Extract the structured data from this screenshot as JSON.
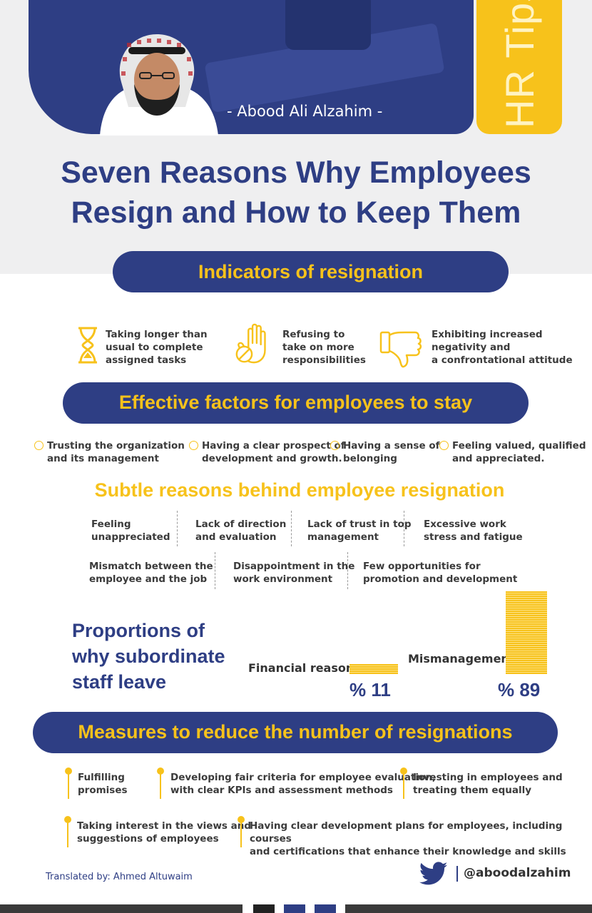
{
  "header": {
    "author": "- Abood Ali Alzahim -",
    "side_tab": "HR Tips"
  },
  "title": {
    "line1": "Seven Reasons Why Employees",
    "line2": "Resign and How to Keep Them"
  },
  "indicators": {
    "heading": "Indicators of resignation",
    "items": [
      {
        "icon": "hourglass-icon",
        "lines": [
          "Taking longer than",
          "usual to complete",
          "assigned tasks"
        ]
      },
      {
        "icon": "stop-hand-icon",
        "lines": [
          "Refusing to",
          "take on more",
          "responsibilities"
        ]
      },
      {
        "icon": "thumbs-down-icon",
        "lines": [
          "Exhibiting increased",
          "negativity and",
          "a confrontational attitude"
        ]
      }
    ]
  },
  "factors": {
    "heading": "Effective factors for employees to stay",
    "items": [
      {
        "lines": [
          "Trusting the organization",
          "and its management"
        ]
      },
      {
        "lines": [
          "Having a clear prospect of",
          "development and growth."
        ]
      },
      {
        "lines": [
          "Having a sense of",
          "belonging"
        ]
      },
      {
        "lines": [
          "Feeling valued, qualified",
          "and appreciated."
        ]
      }
    ]
  },
  "subtle": {
    "heading": "Subtle reasons behind employee resignation",
    "row1": [
      {
        "lines": [
          "Feeling",
          "unappreciated"
        ]
      },
      {
        "lines": [
          "Lack of direction",
          "and evaluation"
        ]
      },
      {
        "lines": [
          "Lack of trust in top",
          "management"
        ]
      },
      {
        "lines": [
          "Excessive work",
          "stress and fatigue"
        ]
      }
    ],
    "row2": [
      {
        "lines": [
          "Mismatch between the",
          "employee and the job"
        ]
      },
      {
        "lines": [
          "Disappointment in the",
          "work environment"
        ]
      },
      {
        "lines": [
          "Few opportunities for",
          "promotion and development"
        ]
      }
    ]
  },
  "proportions": {
    "title_lines": [
      "Proportions of",
      "why subordinate",
      "staff leave"
    ]
  },
  "chart_data": {
    "type": "bar",
    "categories": [
      "Financial reasons",
      "Mismanagement"
    ],
    "values": [
      11,
      89
    ],
    "value_labels": [
      "% 11",
      "% 89"
    ],
    "ylim": [
      0,
      100
    ],
    "color": "#f7c21b"
  },
  "measures": {
    "heading": "Measures to reduce the number of resignations",
    "row1": [
      {
        "lines": [
          "Fulfilling",
          "promises"
        ]
      },
      {
        "lines": [
          "Developing fair criteria for employee evaluation,",
          "with clear KPIs and assessment methods"
        ]
      },
      {
        "lines": [
          "Investing in employees and",
          "treating them equally"
        ]
      }
    ],
    "row2": [
      {
        "lines": [
          "Taking interest in the views and",
          "suggestions of employees"
        ]
      },
      {
        "lines": [
          "Having clear development plans for employees, including courses",
          "and certifications that enhance their knowledge and skills"
        ]
      }
    ]
  },
  "footer": {
    "credit": "Translated by: Ahmed Altuwaim",
    "handle": "@aboodalzahim",
    "social_icon": "twitter-bird-icon"
  },
  "colors": {
    "navy": "#2e3e84",
    "yellow": "#f7c21b",
    "light_gray": "#efeff0"
  }
}
